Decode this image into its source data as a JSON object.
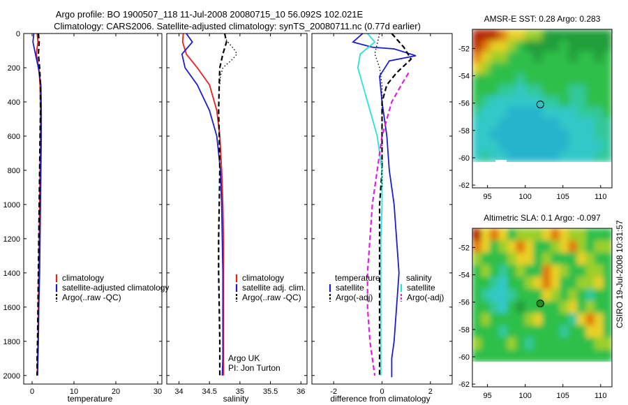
{
  "header": {
    "title_line1": "Argo profile: BO 1900507_118 11-Jul-2008 20080715_10 56.092S 102.021E",
    "title_line2": "Climatology: CARS2006. Satellite-adjusted climatology: synTS_20080711.nc (0.77d earlier)"
  },
  "side_label": "CSIRO 19-Jul-2008 10:31:57",
  "chart_data": [
    {
      "type": "line",
      "panel": "temperature",
      "xlabel": "temperature",
      "xlim": [
        -2,
        31
      ],
      "ylim": [
        0,
        2050
      ],
      "y_inverted": true,
      "xticks": [
        0,
        10,
        20,
        30
      ],
      "yticks": [
        0,
        200,
        400,
        600,
        800,
        1000,
        1200,
        1400,
        1600,
        1800,
        2000
      ],
      "legend": [
        "climatology",
        "satellite-adjusted climatology",
        "Argo(..raw -QC)"
      ],
      "legend_placement": "lower-right",
      "series": [
        {
          "name": "climatology",
          "color": "#e8201c",
          "dash": "solid",
          "x": [
            1.2,
            1.4,
            1.0,
            1.6,
            1.9,
            2.0,
            2.0,
            1.9,
            1.8,
            1.7,
            1.6,
            1.5,
            1.4,
            1.3,
            1.2
          ],
          "y": [
            0,
            50,
            120,
            200,
            300,
            450,
            600,
            800,
            1000,
            1200,
            1400,
            1600,
            1800,
            1900,
            2000
          ]
        },
        {
          "name": "satellite-adjusted climatology",
          "color": "#1c1cd2",
          "dash": "solid",
          "x": [
            0.4,
            0.2,
            0.8,
            1.5,
            2.1,
            2.2,
            2.2,
            2.1,
            2.0,
            1.9,
            1.8,
            1.6,
            1.5,
            1.4,
            1.3
          ],
          "y": [
            0,
            50,
            120,
            200,
            300,
            450,
            600,
            800,
            1000,
            1200,
            1400,
            1600,
            1800,
            1900,
            2000
          ]
        },
        {
          "name": "Argo(..raw -QC)",
          "color": "#000000",
          "dash": "dash",
          "x": [
            1.5,
            1.7,
            1.5,
            1.8,
            2.0,
            2.0,
            1.9,
            1.8,
            1.7,
            1.6,
            1.5,
            1.4,
            1.3,
            1.2,
            1.2
          ],
          "y": [
            0,
            50,
            120,
            200,
            300,
            450,
            600,
            800,
            1000,
            1200,
            1400,
            1600,
            1800,
            1900,
            2000
          ]
        }
      ]
    },
    {
      "type": "line",
      "panel": "salinity",
      "xlabel": "salinity",
      "xlim": [
        33.8,
        36.1
      ],
      "ylim": [
        0,
        2050
      ],
      "y_inverted": true,
      "xticks": [
        34,
        34.5,
        35,
        35.5,
        36
      ],
      "legend": [
        "climatology",
        "satellite adj. clim.",
        "Argo(..raw -QC)"
      ],
      "legend_placement": "lower-right",
      "annotation": [
        "Argo UK",
        "PI: Jon Turton"
      ],
      "series": [
        {
          "name": "climatology",
          "color": "#e8201c",
          "dash": "solid",
          "x": [
            34.07,
            34.06,
            34.12,
            34.3,
            34.5,
            34.62,
            34.67,
            34.7,
            34.72,
            34.73,
            34.73,
            34.73,
            34.73,
            34.73,
            34.73
          ],
          "y": [
            0,
            50,
            120,
            200,
            300,
            450,
            600,
            800,
            1000,
            1200,
            1400,
            1600,
            1800,
            1900,
            2000
          ]
        },
        {
          "name": "satellite adj. clim.",
          "color": "#1c1cd2",
          "dash": "solid",
          "x": [
            34.12,
            34.22,
            34.05,
            34.1,
            34.3,
            34.5,
            34.62,
            34.68,
            34.7,
            34.71,
            34.72,
            34.72,
            34.72,
            34.72,
            34.71
          ],
          "y": [
            0,
            50,
            120,
            200,
            300,
            450,
            600,
            800,
            1000,
            1200,
            1400,
            1600,
            1800,
            1900,
            2000
          ]
        },
        {
          "name": "Argo(..raw -QC)",
          "color": "#000000",
          "dash": "dash",
          "x": [
            34.75,
            34.78,
            34.72,
            34.67,
            34.66,
            34.65,
            34.66,
            34.67,
            34.66,
            34.65,
            34.65,
            34.66,
            34.67,
            34.67,
            34.67
          ],
          "y": [
            0,
            50,
            120,
            200,
            300,
            450,
            600,
            800,
            1000,
            1200,
            1400,
            1600,
            1800,
            1900,
            2000
          ]
        },
        {
          "name": "",
          "color": "#000000",
          "dash": "dot",
          "x": [
            34.75,
            34.78,
            34.9,
            34.95,
            34.88,
            34.72,
            34.68,
            34.67
          ],
          "y": [
            0,
            40,
            90,
            120,
            150,
            200,
            250,
            300
          ]
        }
      ]
    },
    {
      "type": "line",
      "panel": "difference",
      "xlabel": "difference from climatology",
      "xlim": [
        -2.9,
        2.9
      ],
      "ylim": [
        0,
        2050
      ],
      "y_inverted": true,
      "xticks": [
        -2,
        0,
        2
      ],
      "legend": [
        "temperature",
        "satellite",
        "Argo(-adj)",
        "salinity",
        "satellite",
        "Argo(-adj)"
      ],
      "legend_placement": "lower-center",
      "series": [
        {
          "name": "satellite",
          "group": "temperature",
          "color": "#1c1cd2",
          "dash": "solid",
          "x": [
            -0.8,
            -1.2,
            -0.4,
            0.5,
            1.4,
            0.3,
            -0.1,
            0.0,
            0.2,
            0.3,
            0.5,
            0.6,
            0.7,
            0.6,
            0.5,
            0.4,
            0.4,
            0.4,
            0.4
          ],
          "y": [
            0,
            50,
            80,
            90,
            130,
            160,
            250,
            400,
            600,
            800,
            1000,
            1200,
            1400,
            1600,
            1800,
            1900,
            1950,
            2000,
            2010
          ]
        },
        {
          "name": "Argo(-adj)",
          "group": "temperature",
          "color": "#000000",
          "dash": "dash",
          "x": [
            0.4,
            0.9,
            1.2,
            0.6,
            0.2,
            0.0,
            0.0,
            0.0,
            -0.1,
            -0.1,
            -0.1,
            -0.1,
            -0.1,
            -0.1
          ],
          "y": [
            0,
            80,
            150,
            230,
            300,
            400,
            600,
            800,
            1000,
            1200,
            1400,
            1600,
            1800,
            2000
          ]
        },
        {
          "name": "satellite",
          "group": "salinity",
          "color": "#22e2e2",
          "dash": "solid",
          "x": [
            -0.6,
            -0.3,
            -0.9,
            -1.0,
            -0.8,
            -0.5,
            -0.2,
            0.0,
            0.0,
            -0.05,
            -0.05,
            -0.05,
            -0.05,
            -0.05
          ],
          "y": [
            0,
            50,
            120,
            200,
            300,
            450,
            600,
            800,
            1000,
            1200,
            1400,
            1600,
            1800,
            2000
          ]
        },
        {
          "name": "Argo(-adj)",
          "group": "salinity",
          "color": "#e21ce2",
          "dash": "dash",
          "x": [
            1.1,
            0.8,
            0.4,
            0.0,
            -0.2,
            -0.4,
            -0.5,
            -0.6,
            -0.6,
            -0.5,
            -0.4,
            -0.3
          ],
          "y": [
            230,
            300,
            400,
            600,
            800,
            1000,
            1200,
            1400,
            1600,
            1800,
            1900,
            2000
          ]
        },
        {
          "name": "",
          "color": "#000000",
          "dash": "dot",
          "x": [
            -0.1,
            -0.2,
            -0.3,
            -0.1,
            0.0,
            0.0,
            0.0,
            0.0,
            0.0
          ],
          "y": [
            0,
            60,
            120,
            200,
            300,
            500,
            700,
            850,
            900
          ]
        }
      ]
    },
    {
      "type": "heatmap",
      "panel": "sst_map",
      "title": "AMSR-E SST: 0.28 Argo: 0.283",
      "xlim": [
        93,
        111.5
      ],
      "ylim": [
        -62.2,
        -50.6
      ],
      "xticks": [
        95,
        100,
        105,
        110
      ],
      "yticks": [
        -52,
        -54,
        -56,
        -58,
        -60,
        -62
      ],
      "marker": {
        "lon": 102.0,
        "lat": -56.1
      },
      "data_coverage_south_limit": -60
    },
    {
      "type": "heatmap",
      "panel": "sla_map",
      "title": "Altimetric SLA: 0.1 Argo: -0.097",
      "xlim": [
        93,
        111.5
      ],
      "ylim": [
        -62.2,
        -50.6
      ],
      "xticks": [
        95,
        100,
        105,
        110
      ],
      "yticks": [
        -52,
        -54,
        -56,
        -58,
        -60,
        -62
      ],
      "marker": {
        "lon": 102.0,
        "lat": -56.1
      },
      "data_coverage_south_limit": -60
    }
  ]
}
